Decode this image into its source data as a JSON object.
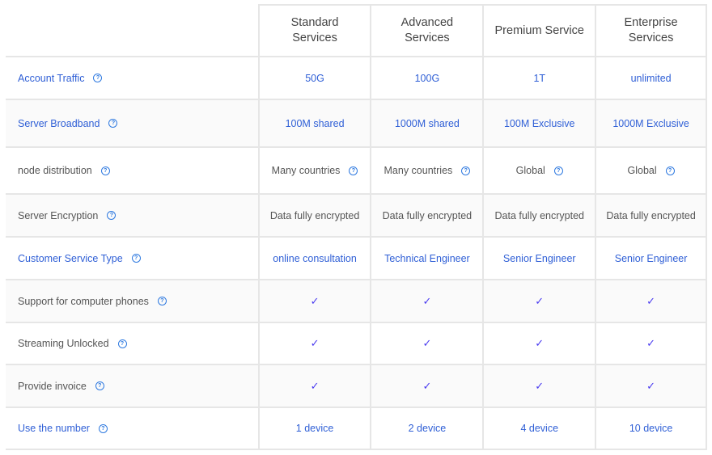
{
  "colors": {
    "link": "#2f5fd6",
    "check": "#4b3cf0",
    "help": "#2f7ae0",
    "border": "#e6e6e6"
  },
  "header": [
    "Standard Services",
    "Advanced Services",
    "Premium Service",
    "Enterprise Services"
  ],
  "rows": [
    {
      "label": "Account Traffic",
      "blue": true,
      "values": [
        "50G",
        "100G",
        "1T",
        "unlimited"
      ]
    },
    {
      "label": "Server Broadband",
      "blue": true,
      "values": [
        "100M shared",
        "1000M shared",
        "100M Exclusive",
        "1000M Exclusive"
      ]
    },
    {
      "label": "node distribution",
      "blue": false,
      "help_values": true,
      "values": [
        "Many countries",
        "Many countries",
        "Global",
        "Global"
      ]
    },
    {
      "label": "Server Encryption",
      "blue": false,
      "values": [
        "Data fully encrypted",
        "Data fully encrypted",
        "Data fully encrypted",
        "Data fully encrypted"
      ]
    },
    {
      "label": "Customer Service Type",
      "blue": true,
      "values": [
        "online consultation",
        "Technical Engineer",
        "Senior Engineer",
        "Senior Engineer"
      ]
    },
    {
      "label": "Support for computer phones",
      "blue": false,
      "check": true,
      "values": [
        "✓",
        "✓",
        "✓",
        "✓"
      ]
    },
    {
      "label": "Streaming Unlocked",
      "blue": false,
      "check": true,
      "values": [
        "✓",
        "✓",
        "✓",
        "✓"
      ]
    },
    {
      "label": "Provide invoice",
      "blue": false,
      "check": true,
      "values": [
        "✓",
        "✓",
        "✓",
        "✓"
      ]
    },
    {
      "label": "Use the number",
      "blue": true,
      "values": [
        "1 device",
        "2 device",
        "4 device",
        "10 device"
      ]
    }
  ],
  "help_glyph": "?",
  "help_icon": "question-circle-icon",
  "check_icon": "checkmark-icon"
}
